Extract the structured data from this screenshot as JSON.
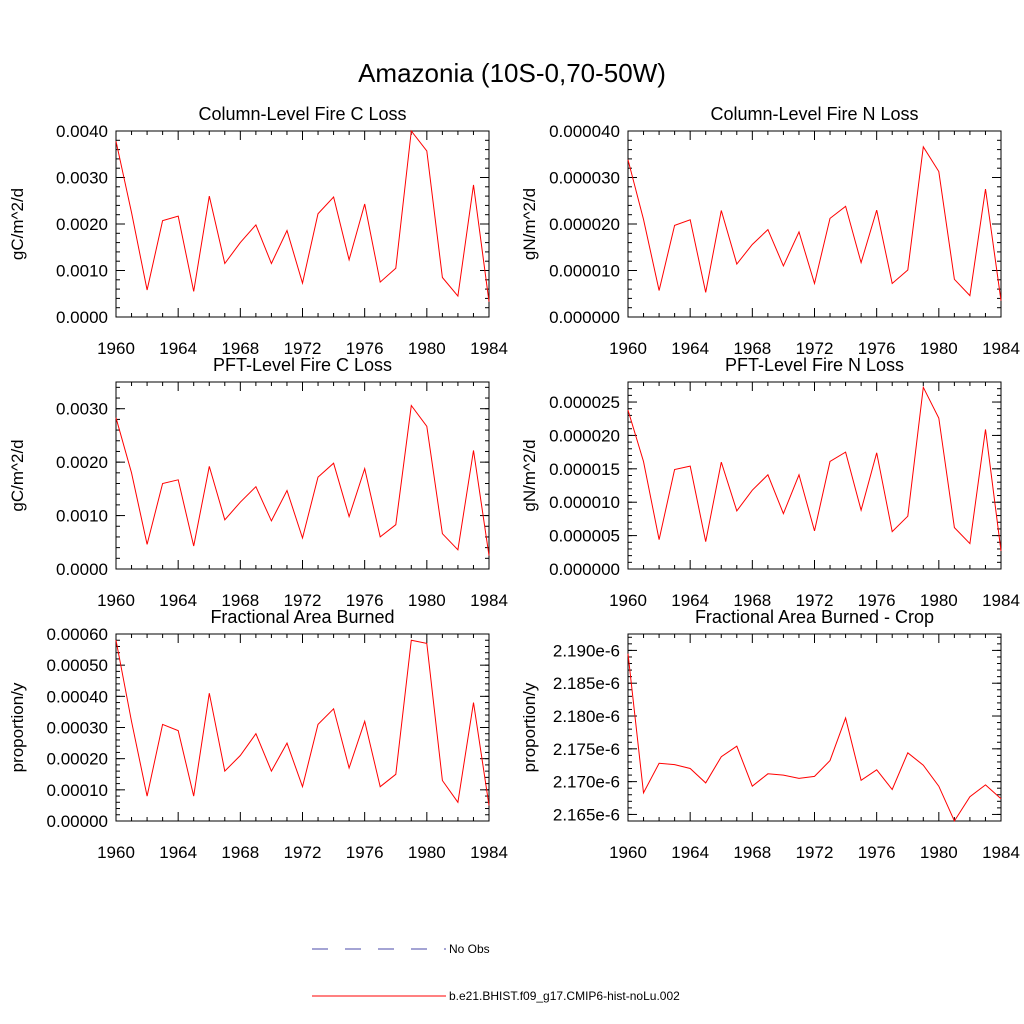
{
  "figure": {
    "title": "Amazonia (10S-0,70-50W)",
    "legend": [
      {
        "label": "No Obs",
        "style": "dashed",
        "color": "#4a4aa8"
      },
      {
        "label": "b.e21.BHIST.f09_g17.CMIP6-hist-noLu.002",
        "style": "solid",
        "color": "#ff0000"
      }
    ]
  },
  "chart_data": [
    {
      "type": "line",
      "title": "Column-Level Fire C Loss",
      "ylabel": "gC/m^2/d",
      "xlim": [
        1960,
        1984
      ],
      "ylim": [
        0,
        0.004
      ],
      "xticks": [
        1960,
        1964,
        1968,
        1972,
        1976,
        1980,
        1984
      ],
      "xtick_labels": [
        "1960",
        "1964",
        "1968",
        "1972",
        "1976",
        "1980",
        "1984"
      ],
      "yticks": [
        0,
        0.001,
        0.002,
        0.003,
        0.004
      ],
      "ytick_labels": [
        "0.0000",
        "0.0010",
        "0.0020",
        "0.0030",
        "0.0040"
      ],
      "x": [
        1960,
        1961,
        1962,
        1963,
        1964,
        1965,
        1966,
        1967,
        1968,
        1969,
        1970,
        1971,
        1972,
        1973,
        1974,
        1975,
        1976,
        1977,
        1978,
        1979,
        1980,
        1981,
        1982,
        1983,
        1984
      ],
      "series": [
        {
          "color": "#ff0000",
          "values": [
            0.00378,
            0.00225,
            0.00058,
            0.00207,
            0.00217,
            0.00055,
            0.0026,
            0.00115,
            0.0016,
            0.00198,
            0.00115,
            0.00186,
            0.00073,
            0.00222,
            0.00258,
            0.00123,
            0.00243,
            0.00075,
            0.00105,
            0.004,
            0.00357,
            0.00085,
            0.00045,
            0.00284,
            0.00033
          ]
        }
      ]
    },
    {
      "type": "line",
      "title": "Column-Level Fire N Loss",
      "ylabel": "gN/m^2/d",
      "xlim": [
        1960,
        1984
      ],
      "ylim": [
        0,
        4e-05
      ],
      "xticks": [
        1960,
        1964,
        1968,
        1972,
        1976,
        1980,
        1984
      ],
      "xtick_labels": [
        "1960",
        "1964",
        "1968",
        "1972",
        "1976",
        "1980",
        "1984"
      ],
      "yticks": [
        0,
        1e-05,
        2e-05,
        3e-05,
        4e-05
      ],
      "ytick_labels": [
        "0.000000",
        "0.000010",
        "0.000020",
        "0.000030",
        "0.000040"
      ],
      "x": [
        1960,
        1961,
        1962,
        1963,
        1964,
        1965,
        1966,
        1967,
        1968,
        1969,
        1970,
        1971,
        1972,
        1973,
        1974,
        1975,
        1976,
        1977,
        1978,
        1979,
        1980,
        1981,
        1982,
        1983,
        1984
      ],
      "series": [
        {
          "color": "#ff0000",
          "values": [
            3.38e-05,
            2.1e-05,
            5.7e-06,
            1.97e-05,
            2.09e-05,
            5.3e-06,
            2.29e-05,
            1.14e-05,
            1.56e-05,
            1.88e-05,
            1.1e-05,
            1.83e-05,
            7.2e-06,
            2.12e-05,
            2.38e-05,
            1.17e-05,
            2.3e-05,
            7.2e-06,
            1.01e-05,
            3.66e-05,
            3.13e-05,
            8.1e-06,
            4.6e-06,
            2.75e-05,
            3.5e-06
          ]
        }
      ]
    },
    {
      "type": "line",
      "title": "PFT-Level Fire C Loss",
      "ylabel": "gC/m^2/d",
      "xlim": [
        1960,
        1984
      ],
      "ylim": [
        0,
        0.0035
      ],
      "xticks": [
        1960,
        1964,
        1968,
        1972,
        1976,
        1980,
        1984
      ],
      "xtick_labels": [
        "1960",
        "1964",
        "1968",
        "1972",
        "1976",
        "1980",
        "1984"
      ],
      "yticks": [
        0,
        0.001,
        0.002,
        0.003
      ],
      "ytick_labels": [
        "0.0000",
        "0.0010",
        "0.0020",
        "0.0030"
      ],
      "x": [
        1960,
        1961,
        1962,
        1963,
        1964,
        1965,
        1966,
        1967,
        1968,
        1969,
        1970,
        1971,
        1972,
        1973,
        1974,
        1975,
        1976,
        1977,
        1978,
        1979,
        1980,
        1981,
        1982,
        1983,
        1984
      ],
      "series": [
        {
          "color": "#ff0000",
          "values": [
            0.00283,
            0.0018,
            0.00046,
            0.0016,
            0.00167,
            0.00043,
            0.00192,
            0.00092,
            0.00125,
            0.00154,
            0.0009,
            0.00147,
            0.00058,
            0.00172,
            0.00198,
            0.00098,
            0.00188,
            0.0006,
            0.00083,
            0.00306,
            0.00267,
            0.00066,
            0.00036,
            0.00222,
            0.00025
          ]
        }
      ]
    },
    {
      "type": "line",
      "title": "PFT-Level Fire N Loss",
      "ylabel": "gN/m^2/d",
      "xlim": [
        1960,
        1984
      ],
      "ylim": [
        0,
        2.8e-05
      ],
      "xticks": [
        1960,
        1964,
        1968,
        1972,
        1976,
        1980,
        1984
      ],
      "xtick_labels": [
        "1960",
        "1964",
        "1968",
        "1972",
        "1976",
        "1980",
        "1984"
      ],
      "yticks": [
        0,
        5e-06,
        1e-05,
        1.5e-05,
        2e-05,
        2.5e-05
      ],
      "ytick_labels": [
        "0.000000",
        "0.000005",
        "0.000010",
        "0.000015",
        "0.000020",
        "0.000025"
      ],
      "x": [
        1960,
        1961,
        1962,
        1963,
        1964,
        1965,
        1966,
        1967,
        1968,
        1969,
        1970,
        1971,
        1972,
        1973,
        1974,
        1975,
        1976,
        1977,
        1978,
        1979,
        1980,
        1981,
        1982,
        1983,
        1984
      ],
      "series": [
        {
          "color": "#ff0000",
          "values": [
            2.38e-05,
            1.61e-05,
            4.4e-06,
            1.49e-05,
            1.54e-05,
            4.1e-06,
            1.6e-05,
            8.7e-06,
            1.18e-05,
            1.41e-05,
            8.3e-06,
            1.41e-05,
            5.7e-06,
            1.61e-05,
            1.75e-05,
            8.8e-06,
            1.74e-05,
            5.6e-06,
            7.9e-06,
            2.72e-05,
            2.26e-05,
            6.2e-06,
            3.8e-06,
            2.09e-05,
            2.7e-06
          ]
        }
      ]
    },
    {
      "type": "line",
      "title": "Fractional Area Burned",
      "ylabel": "proportion/y",
      "xlim": [
        1960,
        1984
      ],
      "ylim": [
        0,
        0.0006
      ],
      "xticks": [
        1960,
        1964,
        1968,
        1972,
        1976,
        1980,
        1984
      ],
      "xtick_labels": [
        "1960",
        "1964",
        "1968",
        "1972",
        "1976",
        "1980",
        "1984"
      ],
      "yticks": [
        0,
        0.0001,
        0.0002,
        0.0003,
        0.0004,
        0.0005,
        0.0006
      ],
      "ytick_labels": [
        "0.00000",
        "0.00010",
        "0.00020",
        "0.00030",
        "0.00040",
        "0.00050",
        "0.00060"
      ],
      "x": [
        1960,
        1961,
        1962,
        1963,
        1964,
        1965,
        1966,
        1967,
        1968,
        1969,
        1970,
        1971,
        1972,
        1973,
        1974,
        1975,
        1976,
        1977,
        1978,
        1979,
        1980,
        1981,
        1982,
        1983,
        1984
      ],
      "series": [
        {
          "color": "#ff0000",
          "values": [
            0.00058,
            0.00032,
            8e-05,
            0.00031,
            0.00029,
            8e-05,
            0.00041,
            0.00016,
            0.00021,
            0.00028,
            0.00016,
            0.00025,
            0.00011,
            0.00031,
            0.00036,
            0.00017,
            0.00032,
            0.00011,
            0.00015,
            0.00058,
            0.00057,
            0.00013,
            6e-05,
            0.00038,
            5e-05
          ]
        }
      ]
    },
    {
      "type": "line",
      "title": "Fractional Area Burned - Crop",
      "ylabel": "proportion/y",
      "xlim": [
        1960,
        1984
      ],
      "ylim": [
        2.164e-06,
        2.1925e-06
      ],
      "xticks": [
        1960,
        1964,
        1968,
        1972,
        1976,
        1980,
        1984
      ],
      "xtick_labels": [
        "1960",
        "1964",
        "1968",
        "1972",
        "1976",
        "1980",
        "1984"
      ],
      "yticks": [
        2.165e-06,
        2.17e-06,
        2.175e-06,
        2.18e-06,
        2.185e-06,
        2.19e-06
      ],
      "ytick_labels": [
        "2.165e-6",
        "2.170e-6",
        "2.175e-6",
        "2.180e-6",
        "2.185e-6",
        "2.190e-6"
      ],
      "x": [
        1960,
        1961,
        1962,
        1963,
        1964,
        1965,
        1966,
        1967,
        1968,
        1969,
        1970,
        1971,
        1972,
        1973,
        1974,
        1975,
        1976,
        1977,
        1978,
        1979,
        1980,
        1981,
        1982,
        1983,
        1984
      ],
      "series": [
        {
          "color": "#ff0000",
          "values": [
            2.1895e-06,
            2.1683e-06,
            2.1728e-06,
            2.1726e-06,
            2.172e-06,
            2.1698e-06,
            2.1738e-06,
            2.1754e-06,
            2.1693e-06,
            2.1712e-06,
            2.171e-06,
            2.1705e-06,
            2.1708e-06,
            2.1732e-06,
            2.1797e-06,
            2.1702e-06,
            2.1718e-06,
            2.1688e-06,
            2.1744e-06,
            2.1725e-06,
            2.1693e-06,
            2.164e-06,
            2.1677e-06,
            2.1695e-06,
            2.1674e-06
          ]
        }
      ]
    }
  ]
}
